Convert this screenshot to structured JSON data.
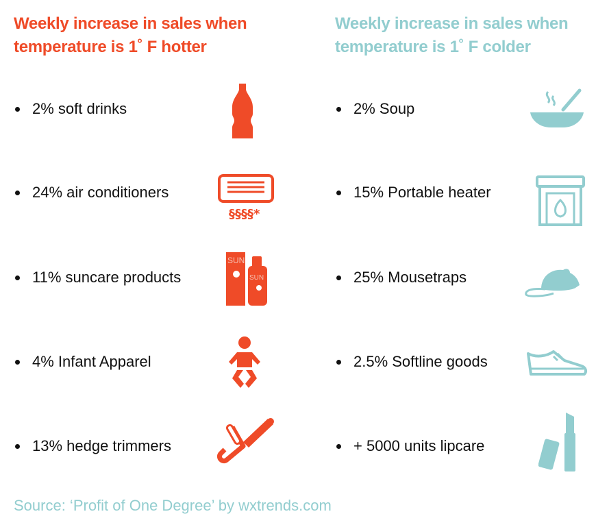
{
  "colors": {
    "hot": "#ef4b28",
    "cold": "#92cdcf",
    "text": "#111111"
  },
  "hotter": {
    "heading_line1": "Weekly increase in sales when",
    "heading_line2": "temperature is 1˚ F hotter",
    "items": [
      {
        "label": "2% soft drinks",
        "icon": "soda-bottle-icon"
      },
      {
        "label": "24% air conditioners",
        "icon": "air-conditioner-icon"
      },
      {
        "label": "11% suncare products",
        "icon": "sunscreen-icon"
      },
      {
        "label": "4% Infant Apparel",
        "icon": "baby-icon"
      },
      {
        "label": "13% hedge trimmers",
        "icon": "chainsaw-icon"
      }
    ],
    "sun_label": "SUN"
  },
  "colder": {
    "heading_line1": "Weekly increase in sales when",
    "heading_line2": "temperature is 1˚ F colder",
    "items": [
      {
        "label": "2% Soup",
        "icon": "soup-bowl-icon"
      },
      {
        "label": "15% Portable heater",
        "icon": "fireplace-icon"
      },
      {
        "label": "25% Mousetraps",
        "icon": "mouse-icon"
      },
      {
        "label": "2.5% Softline goods",
        "icon": "shoe-icon"
      },
      {
        "label": "+ 5000 units lipcare",
        "icon": "lipstick-icon"
      }
    ]
  },
  "source": "Source: ‘Profit of One Degree’ by wxtrends.com"
}
